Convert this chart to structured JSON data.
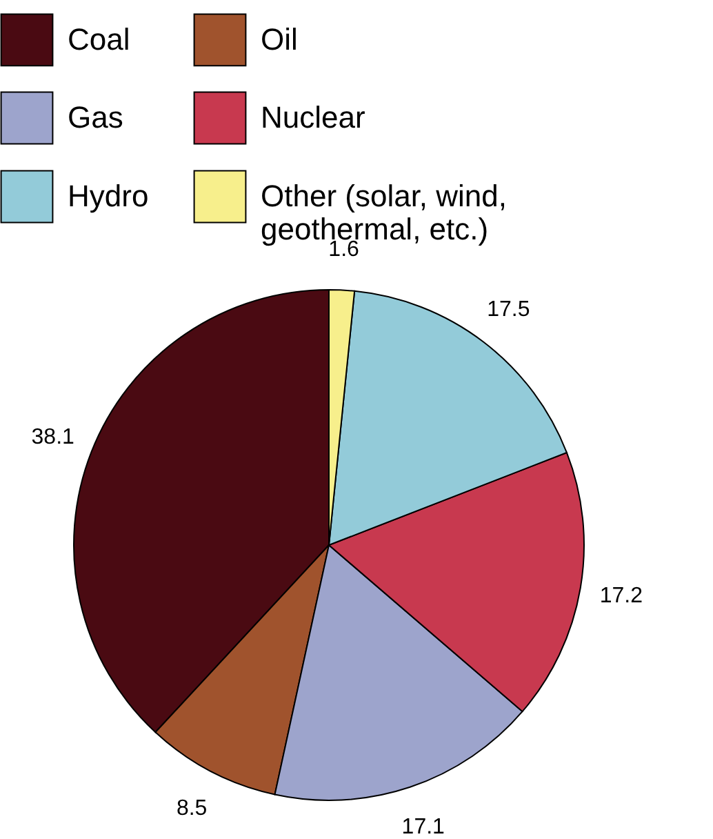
{
  "chart_data": {
    "type": "pie",
    "categories": [
      "Coal",
      "Oil",
      "Gas",
      "Nuclear",
      "Hydro",
      "Other (solar, wind, geothermal, etc.)"
    ],
    "values": [
      38.1,
      8.5,
      17.1,
      17.2,
      17.5,
      1.6
    ],
    "colors": [
      "#4a0a12",
      "#a0532d",
      "#9da4cc",
      "#c8394f",
      "#93cbd9",
      "#f7ef8c"
    ],
    "data_labels": true,
    "legend": "top"
  }
}
